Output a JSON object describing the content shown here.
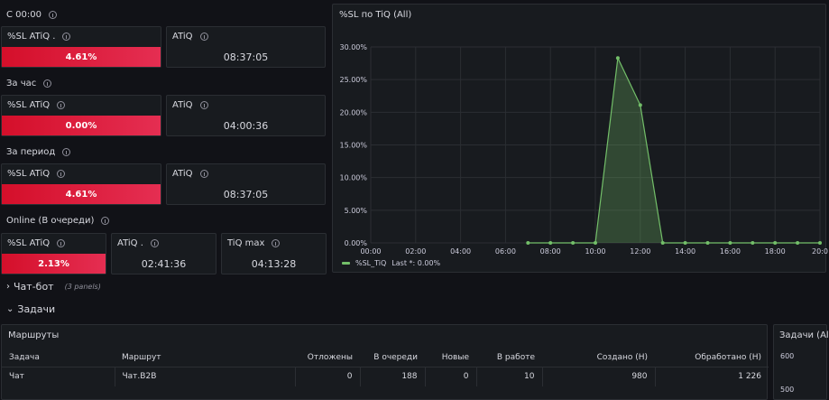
{
  "sections": {
    "since_midnight": "С 00:00",
    "per_hour": "За час",
    "per_period": "За период",
    "online": "Online (В очереди)"
  },
  "stats": {
    "block1": {
      "sl_title": "%SL ATiQ .",
      "sl_value": "4.61%",
      "atiq_title": "ATiQ",
      "atiq_value": "08:37:05"
    },
    "block2": {
      "sl_title": "%SL ATiQ",
      "sl_value": "0.00%",
      "atiq_title": "ATiQ",
      "atiq_value": "04:00:36"
    },
    "block3": {
      "sl_title": "%SL ATiQ",
      "sl_value": "4.61%",
      "atiq_title": "ATiQ",
      "atiq_value": "08:37:05"
    },
    "block4": {
      "sl_title": "%SL ATiQ",
      "sl_value": "2.13%",
      "atiq_title": "ATiQ .",
      "atiq_value": "02:41:36",
      "tiq_title": "TiQ max",
      "tiq_value": "04:13:28"
    }
  },
  "chat_bot": {
    "title": "Чат-бот",
    "panels": "(3 panels)"
  },
  "tasks": {
    "title": "Задачи"
  },
  "routes": {
    "title": "Маршруты",
    "columns": [
      "Задача",
      "Маршрут",
      "Отложены",
      "В очереди",
      "Новые",
      "В работе",
      "Создано (Н)",
      "Обработано (Н)"
    ],
    "rows": [
      [
        "Чат",
        "Чат.B2B",
        "0",
        "188",
        "0",
        "10",
        "980",
        "1 226"
      ]
    ]
  },
  "side_panel": {
    "title": "Задачи (Al",
    "y_ticks": [
      "600",
      "500"
    ]
  },
  "chart": {
    "panel_title": "%SL по TiQ (All)",
    "legend_label": "%SL_TiQ",
    "legend_stat": "Last *: 0.00%",
    "series_color": "#73bf69"
  },
  "chart_data": {
    "type": "area",
    "title": "%SL по TiQ (All)",
    "x_ticks": [
      "00:00",
      "02:00",
      "04:00",
      "06:00",
      "08:00",
      "10:00",
      "12:00",
      "14:00",
      "16:00",
      "18:00",
      "20:0"
    ],
    "y_ticks": [
      "0.00%",
      "5.00%",
      "10.00%",
      "15.00%",
      "20.00%",
      "25.00%",
      "30.00%"
    ],
    "ylim": [
      0,
      30
    ],
    "xlim_hours": [
      0,
      20
    ],
    "series": [
      {
        "name": "%SL_TiQ",
        "x": [
          7,
          8,
          9,
          10,
          11,
          12,
          13,
          14,
          15,
          16,
          17,
          18,
          19,
          20
        ],
        "values": [
          0,
          0,
          0,
          0,
          28.3,
          21.1,
          0,
          0,
          0,
          0,
          0,
          0,
          0,
          0
        ]
      }
    ]
  }
}
